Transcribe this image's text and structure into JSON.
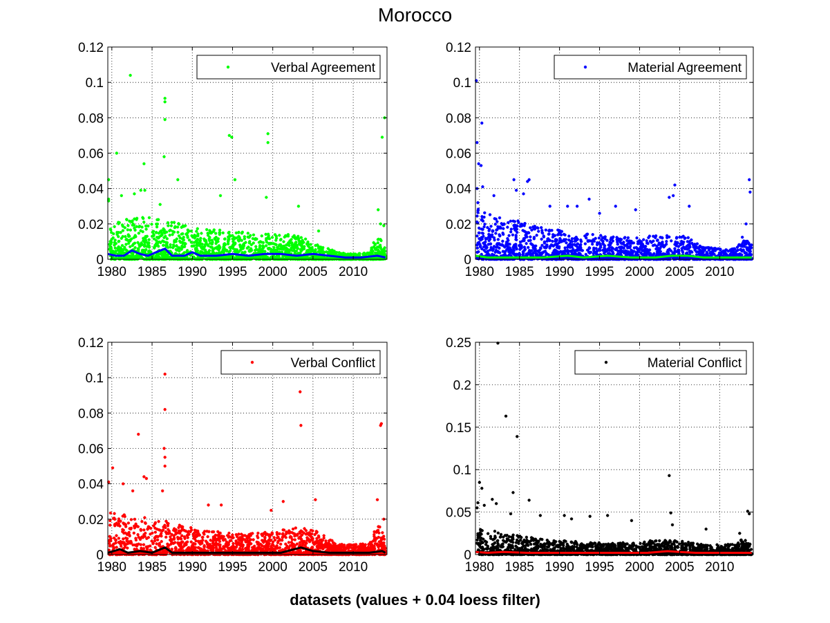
{
  "figure": {
    "title": "Morocco",
    "xlabel": "datasets (values + 0.04 loess filter)"
  },
  "chart_data": [
    {
      "type": "scatter",
      "legend": "Verbal Agreement",
      "legend_position": "top-right",
      "grid": true,
      "x_ticks": [
        1980,
        1985,
        1990,
        1995,
        2000,
        2005,
        2010
      ],
      "y_ticks": [
        "0",
        "0.02",
        "0.04",
        "0.06",
        "0.08",
        "0.1",
        "0.12"
      ],
      "xlim": [
        1979.5,
        2014.2
      ],
      "ylim": [
        0,
        0.12
      ],
      "marker_color": "#00ff00",
      "trend_color": "#0000ff",
      "outliers": [
        [
          1982.3,
          0.104
        ],
        [
          1986.6,
          0.091
        ],
        [
          1986.6,
          0.089
        ],
        [
          1986.6,
          0.079
        ],
        [
          1986.5,
          0.058
        ],
        [
          1988.2,
          0.045
        ],
        [
          1984.0,
          0.054
        ],
        [
          1980.6,
          0.06
        ],
        [
          1979.6,
          0.045
        ],
        [
          1979.6,
          0.034
        ],
        [
          1979.6,
          0.033
        ],
        [
          1984.1,
          0.039
        ],
        [
          1983.6,
          0.039
        ],
        [
          1981.2,
          0.036
        ],
        [
          1982.8,
          0.037
        ],
        [
          1994.6,
          0.07
        ],
        [
          1994.9,
          0.069
        ],
        [
          1999.4,
          0.071
        ],
        [
          1999.4,
          0.066
        ],
        [
          1995.3,
          0.045
        ],
        [
          1993.5,
          0.036
        ],
        [
          1999.2,
          0.035
        ],
        [
          2013.9,
          0.08
        ],
        [
          2013.6,
          0.069
        ],
        [
          2013.1,
          0.028
        ],
        [
          2013.4,
          0.02
        ],
        [
          2013.8,
          0.019
        ],
        [
          2003.2,
          0.03
        ],
        [
          2005.7,
          0.016
        ],
        [
          1986.0,
          0.031
        ]
      ],
      "density": [
        [
          1979.5,
          0.022
        ],
        [
          1984,
          0.024
        ],
        [
          1987,
          0.022
        ],
        [
          1990,
          0.018
        ],
        [
          1995,
          0.016
        ],
        [
          2000,
          0.014
        ],
        [
          2003,
          0.014
        ],
        [
          2006,
          0.008
        ],
        [
          2008,
          0.004
        ],
        [
          2010,
          0.003
        ],
        [
          2012,
          0.004
        ],
        [
          2013,
          0.014
        ],
        [
          2014,
          0.008
        ]
      ],
      "trend": [
        [
          1979.5,
          0.003
        ],
        [
          1980.5,
          0.002
        ],
        [
          1981.5,
          0.002
        ],
        [
          1982.5,
          0.005
        ],
        [
          1983.5,
          0.003
        ],
        [
          1984.5,
          0.002
        ],
        [
          1985.5,
          0.004
        ],
        [
          1986.6,
          0.006
        ],
        [
          1987.5,
          0.002
        ],
        [
          1989,
          0.002
        ],
        [
          1990,
          0.004
        ],
        [
          1991,
          0.002
        ],
        [
          1993,
          0.002
        ],
        [
          1995,
          0.003
        ],
        [
          1997,
          0.002
        ],
        [
          1999,
          0.003
        ],
        [
          2001,
          0.003
        ],
        [
          2003,
          0.002
        ],
        [
          2005,
          0.003
        ],
        [
          2007,
          0.002
        ],
        [
          2009,
          0.001
        ],
        [
          2011,
          0.001
        ],
        [
          2013,
          0.002
        ],
        [
          2014,
          0.001
        ]
      ]
    },
    {
      "type": "scatter",
      "legend": "Material Agreement",
      "legend_position": "top-right",
      "grid": true,
      "x_ticks": [
        1980,
        1985,
        1990,
        1995,
        2000,
        2005,
        2010
      ],
      "y_ticks": [
        "0",
        "0.02",
        "0.04",
        "0.06",
        "0.08",
        "0.1",
        "0.12"
      ],
      "xlim": [
        1979.5,
        2014.2
      ],
      "ylim": [
        0,
        0.12
      ],
      "marker_color": "#0000ff",
      "trend_color": "#00ff00",
      "outliers": [
        [
          1979.6,
          0.101
        ],
        [
          1980.3,
          0.077
        ],
        [
          1979.7,
          0.066
        ],
        [
          1979.9,
          0.054
        ],
        [
          1980.2,
          0.053
        ],
        [
          1980.4,
          0.041
        ],
        [
          1979.7,
          0.04
        ],
        [
          1979.8,
          0.032
        ],
        [
          1984.3,
          0.045
        ],
        [
          1986.0,
          0.044
        ],
        [
          1986.2,
          0.045
        ],
        [
          1985.5,
          0.037
        ],
        [
          1981.8,
          0.036
        ],
        [
          1984.6,
          0.039
        ],
        [
          1988.8,
          0.03
        ],
        [
          1993.7,
          0.034
        ],
        [
          1991.0,
          0.03
        ],
        [
          1992.2,
          0.03
        ],
        [
          1997.0,
          0.03
        ],
        [
          2004.4,
          0.042
        ],
        [
          2003.7,
          0.035
        ],
        [
          2004.2,
          0.036
        ],
        [
          2006.2,
          0.03
        ],
        [
          2013.7,
          0.045
        ],
        [
          2013.8,
          0.038
        ],
        [
          2013.3,
          0.02
        ],
        [
          1999.5,
          0.028
        ],
        [
          1995.0,
          0.026
        ]
      ],
      "density": [
        [
          1979.5,
          0.03
        ],
        [
          1982,
          0.024
        ],
        [
          1985,
          0.022
        ],
        [
          1988,
          0.018
        ],
        [
          1991,
          0.016
        ],
        [
          1995,
          0.014
        ],
        [
          1999,
          0.012
        ],
        [
          2003,
          0.014
        ],
        [
          2006,
          0.013
        ],
        [
          2008,
          0.007
        ],
        [
          2010,
          0.006
        ],
        [
          2012,
          0.006
        ],
        [
          2013,
          0.014
        ],
        [
          2014,
          0.008
        ]
      ],
      "trend": [
        [
          1979.5,
          0.002
        ],
        [
          1981,
          0.001
        ],
        [
          1983,
          0.001
        ],
        [
          1986,
          0.001
        ],
        [
          1988,
          0.001
        ],
        [
          1991,
          0.002
        ],
        [
          1993,
          0.001
        ],
        [
          1996,
          0.002
        ],
        [
          1999,
          0.001
        ],
        [
          2002,
          0.001
        ],
        [
          2004,
          0.002
        ],
        [
          2006,
          0.002
        ],
        [
          2008,
          0.001
        ],
        [
          2011,
          0.001
        ],
        [
          2013,
          0.001
        ],
        [
          2014,
          0.001
        ]
      ]
    },
    {
      "type": "scatter",
      "legend": "Verbal Conflict",
      "legend_position": "top-right",
      "grid": true,
      "x_ticks": [
        1980,
        1985,
        1990,
        1995,
        2000,
        2005,
        2010
      ],
      "y_ticks": [
        "0",
        "0.02",
        "0.04",
        "0.06",
        "0.08",
        "0.1",
        "0.12"
      ],
      "xlim": [
        1979.5,
        2014.2
      ],
      "ylim": [
        0,
        0.12
      ],
      "marker_color": "#ff0000",
      "trend_color": "#000000",
      "outliers": [
        [
          1986.6,
          0.102
        ],
        [
          1986.6,
          0.082
        ],
        [
          1986.5,
          0.06
        ],
        [
          1986.6,
          0.055
        ],
        [
          1986.6,
          0.05
        ],
        [
          1983.3,
          0.068
        ],
        [
          1984.0,
          0.044
        ],
        [
          1980.1,
          0.049
        ],
        [
          1979.6,
          0.041
        ],
        [
          1981.4,
          0.04
        ],
        [
          1984.3,
          0.043
        ],
        [
          1986.3,
          0.036
        ],
        [
          1982.6,
          0.036
        ],
        [
          2003.4,
          0.092
        ],
        [
          2003.5,
          0.073
        ],
        [
          2005.3,
          0.031
        ],
        [
          2001.3,
          0.03
        ],
        [
          2013.5,
          0.074
        ],
        [
          2013.4,
          0.073
        ],
        [
          2013.0,
          0.031
        ],
        [
          2013.8,
          0.02
        ],
        [
          1992.0,
          0.028
        ],
        [
          1993.6,
          0.028
        ],
        [
          1999.8,
          0.025
        ]
      ],
      "density": [
        [
          1979.5,
          0.024
        ],
        [
          1983,
          0.022
        ],
        [
          1986,
          0.02
        ],
        [
          1989,
          0.016
        ],
        [
          1992,
          0.014
        ],
        [
          1995,
          0.012
        ],
        [
          1998,
          0.012
        ],
        [
          2001,
          0.014
        ],
        [
          2004,
          0.016
        ],
        [
          2006,
          0.012
        ],
        [
          2008,
          0.006
        ],
        [
          2010,
          0.006
        ],
        [
          2012,
          0.006
        ],
        [
          2013,
          0.018
        ],
        [
          2014,
          0.01
        ]
      ],
      "trend": [
        [
          1979.5,
          0.001
        ],
        [
          1981,
          0.003
        ],
        [
          1982,
          0.001
        ],
        [
          1983.5,
          0.002
        ],
        [
          1985,
          0.001
        ],
        [
          1986.6,
          0.004
        ],
        [
          1987.5,
          0.001
        ],
        [
          1990,
          0.001
        ],
        [
          1992,
          0.001
        ],
        [
          1995,
          0.001
        ],
        [
          1998,
          0.001
        ],
        [
          2001,
          0.001
        ],
        [
          2003.5,
          0.004
        ],
        [
          2005,
          0.002
        ],
        [
          2007,
          0.001
        ],
        [
          2010,
          0.001
        ],
        [
          2012,
          0.001
        ],
        [
          2013.6,
          0.002
        ],
        [
          2014,
          0.001
        ]
      ]
    },
    {
      "type": "scatter",
      "legend": "Material Conflict",
      "legend_position": "top-right",
      "grid": true,
      "x_ticks": [
        1980,
        1985,
        1990,
        1995,
        2000,
        2005,
        2010
      ],
      "y_ticks": [
        "0",
        "0.05",
        "0.1",
        "0.15",
        "0.2",
        "0.25"
      ],
      "xlim": [
        1979.5,
        2014.2
      ],
      "ylim": [
        0,
        0.25
      ],
      "marker_color": "#000000",
      "trend_color": "#ff0000",
      "outliers": [
        [
          1982.3,
          0.249
        ],
        [
          1983.3,
          0.163
        ],
        [
          1984.7,
          0.139
        ],
        [
          1984.2,
          0.073
        ],
        [
          1980.0,
          0.085
        ],
        [
          1980.3,
          0.078
        ],
        [
          1979.8,
          0.061
        ],
        [
          1979.7,
          0.055
        ],
        [
          1981.6,
          0.065
        ],
        [
          1982.1,
          0.06
        ],
        [
          1986.2,
          0.064
        ],
        [
          1980.6,
          0.058
        ],
        [
          1983.9,
          0.048
        ],
        [
          1987.6,
          0.046
        ],
        [
          1990.6,
          0.046
        ],
        [
          1991.5,
          0.042
        ],
        [
          1993.8,
          0.045
        ],
        [
          1996.0,
          0.046
        ],
        [
          1999.0,
          0.04
        ],
        [
          2003.7,
          0.093
        ],
        [
          2003.9,
          0.049
        ],
        [
          2004.1,
          0.035
        ],
        [
          2013.5,
          0.051
        ],
        [
          2013.7,
          0.048
        ],
        [
          2008.3,
          0.03
        ],
        [
          2012.5,
          0.025
        ]
      ],
      "density": [
        [
          1979.5,
          0.03
        ],
        [
          1982,
          0.028
        ],
        [
          1985,
          0.022
        ],
        [
          1988,
          0.018
        ],
        [
          1991,
          0.016
        ],
        [
          1995,
          0.014
        ],
        [
          1999,
          0.014
        ],
        [
          2003,
          0.018
        ],
        [
          2005,
          0.016
        ],
        [
          2008,
          0.012
        ],
        [
          2010,
          0.012
        ],
        [
          2012,
          0.012
        ],
        [
          2013,
          0.02
        ],
        [
          2014,
          0.012
        ]
      ],
      "trend": [
        [
          1979.5,
          0.003
        ],
        [
          1981,
          0.002
        ],
        [
          1983,
          0.003
        ],
        [
          1986,
          0.002
        ],
        [
          1989,
          0.002
        ],
        [
          1992,
          0.002
        ],
        [
          1995,
          0.002
        ],
        [
          1998,
          0.002
        ],
        [
          2001,
          0.002
        ],
        [
          2003.5,
          0.004
        ],
        [
          2005,
          0.003
        ],
        [
          2007,
          0.002
        ],
        [
          2010,
          0.002
        ],
        [
          2013,
          0.002
        ],
        [
          2014,
          0.002
        ]
      ]
    }
  ]
}
